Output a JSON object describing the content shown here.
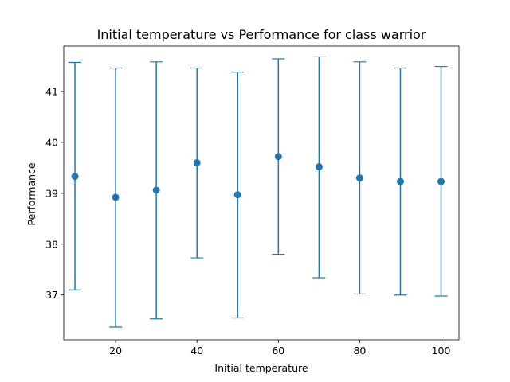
{
  "chart_data": {
    "type": "scatter",
    "title": "Initial temperature vs Performance for class warrior",
    "xlabel": "Initial temperature",
    "ylabel": "Performance",
    "xlim": [
      7.25,
      104.4
    ],
    "ylim": [
      36.12,
      41.89
    ],
    "xticks": [
      20,
      40,
      60,
      80,
      100
    ],
    "yticks": [
      37,
      38,
      39,
      40,
      41
    ],
    "grid": false,
    "legend": false,
    "color": "#1f77b4",
    "x": [
      10,
      20,
      30,
      40,
      50,
      60,
      70,
      80,
      90,
      100
    ],
    "y": [
      39.33,
      38.92,
      39.06,
      39.6,
      38.97,
      39.72,
      39.52,
      39.3,
      39.23,
      39.23
    ],
    "yerr_low": [
      37.1,
      36.37,
      36.53,
      37.73,
      36.55,
      37.8,
      37.34,
      37.02,
      37.0,
      36.98
    ],
    "yerr_high": [
      41.57,
      41.46,
      41.58,
      41.46,
      41.38,
      41.64,
      41.68,
      41.58,
      41.46,
      41.49
    ]
  }
}
